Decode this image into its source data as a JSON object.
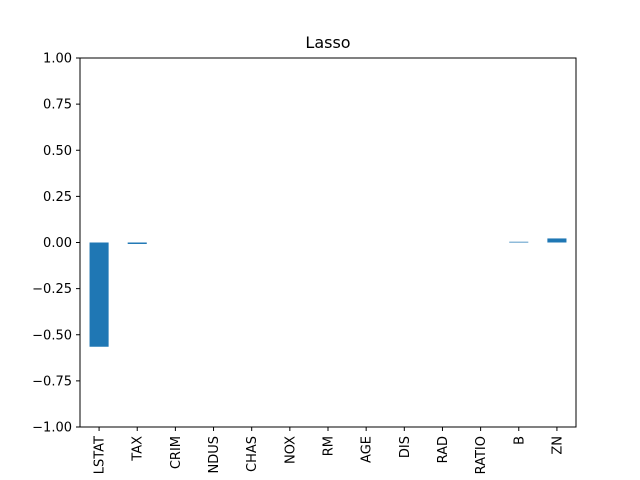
{
  "chart_data": {
    "type": "bar",
    "title": "Lasso",
    "xlabel": "",
    "ylabel": "",
    "categories": [
      "LSTAT",
      "TAX",
      "CRIM",
      "NDUS",
      "CHAS",
      "NOX",
      "RM",
      "AGE",
      "DIS",
      "RAD",
      "RATIO",
      "B",
      "ZN"
    ],
    "values": [
      -0.565,
      -0.008,
      0.0,
      0.0,
      0.0,
      0.0,
      0.0,
      0.0,
      0.0,
      0.0,
      0.0,
      0.004,
      0.022
    ],
    "ylim": [
      -1.0,
      1.0
    ],
    "yticks": [
      "−1.00",
      "−0.75",
      "−0.50",
      "−0.25",
      "0.00",
      "0.25",
      "0.50",
      "0.75",
      "1.00"
    ],
    "ytick_values": [
      -1.0,
      -0.75,
      -0.5,
      -0.25,
      0.0,
      0.25,
      0.5,
      0.75,
      1.0
    ],
    "grid": false,
    "legend": "none",
    "bar_color": "#1f77b4"
  }
}
